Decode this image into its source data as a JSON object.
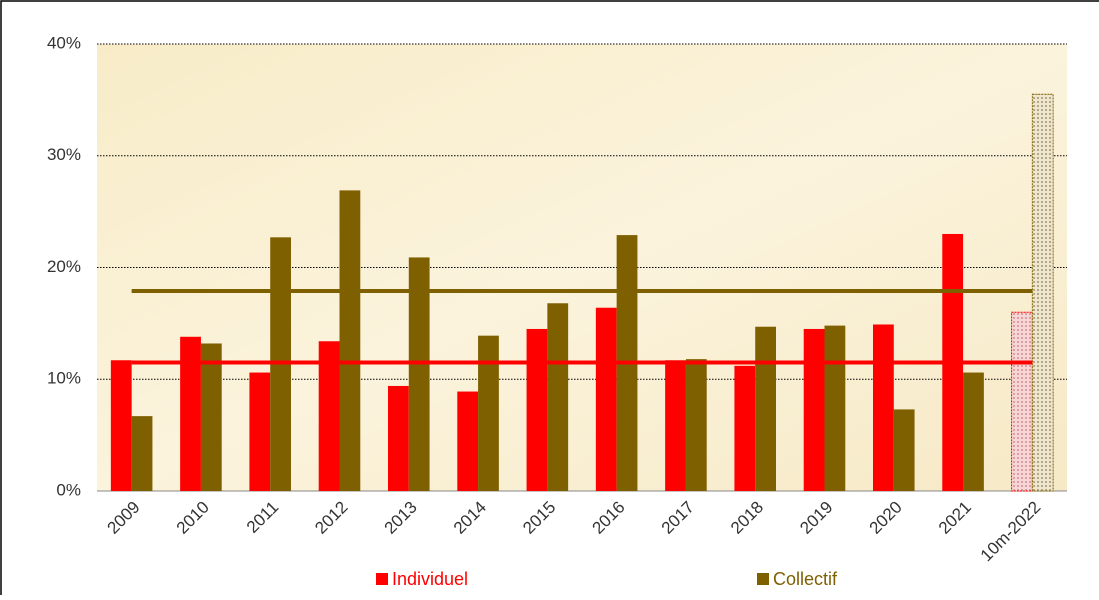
{
  "chart_data": {
    "type": "bar",
    "categories": [
      "2009",
      "2010",
      "2011",
      "2012",
      "2013",
      "2014",
      "2015",
      "2016",
      "2017",
      "2018",
      "2019",
      "2020",
      "2021",
      "10m-2022"
    ],
    "series": [
      {
        "name": "Individuel",
        "color": "#ff0000",
        "average": 11.5,
        "values": [
          11.7,
          13.8,
          10.6,
          13.4,
          9.4,
          8.9,
          14.5,
          16.4,
          11.7,
          11.2,
          14.5,
          14.9,
          23.0,
          16.0
        ]
      },
      {
        "name": "Collectif",
        "color": "#7f6000",
        "average": 17.9,
        "values": [
          6.7,
          13.2,
          22.7,
          26.9,
          20.9,
          13.9,
          16.8,
          22.9,
          11.8,
          14.7,
          14.8,
          7.3,
          10.6,
          35.5
        ]
      }
    ],
    "ylim": [
      0,
      40
    ],
    "yticks": [
      {
        "value": 0,
        "label": "0%"
      },
      {
        "value": 10,
        "label": "10%"
      },
      {
        "value": 20,
        "label": "20%"
      },
      {
        "value": 30,
        "label": "30%"
      },
      {
        "value": 40,
        "label": "40%"
      }
    ],
    "grid": true,
    "last_category_dotted": true,
    "legend": "bottom"
  }
}
